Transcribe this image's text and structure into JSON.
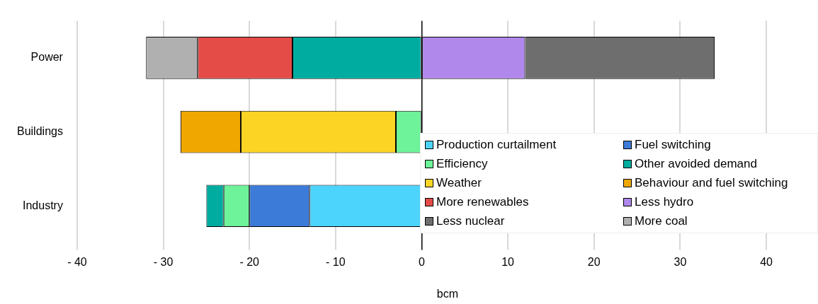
{
  "chart_data": {
    "type": "bar",
    "orientation": "horizontal",
    "stacked": true,
    "xlabel": "bcm",
    "categories": [
      "Power",
      "Buildings",
      "Industry"
    ],
    "series": [
      {
        "name": "Production curtailment",
        "color": "#4dd4fc",
        "values": [
          null,
          null,
          -13
        ]
      },
      {
        "name": "Fuel switching",
        "color": "#3d7bd9",
        "values": [
          null,
          null,
          -7
        ]
      },
      {
        "name": "Efficiency",
        "color": "#6ef29a",
        "values": [
          null,
          -3,
          -3
        ]
      },
      {
        "name": "Other avoided demand",
        "color": "#00aca0",
        "values": [
          -15,
          null,
          -2
        ]
      },
      {
        "name": "Weather",
        "color": "#fcd424",
        "values": [
          null,
          -18,
          null
        ]
      },
      {
        "name": "Behaviour and fuel switching",
        "color": "#f0a800",
        "values": [
          null,
          -7,
          null
        ]
      },
      {
        "name": "More renewables",
        "color": "#e44c48",
        "values": [
          -11,
          null,
          null
        ]
      },
      {
        "name": "Less hydro",
        "color": "#b088ec",
        "values": [
          12,
          null,
          null
        ]
      },
      {
        "name": "Less nuclear",
        "color": "#6e6e6e",
        "values": [
          22,
          null,
          null
        ]
      },
      {
        "name": "More coal",
        "color": "#b0b0b0",
        "values": [
          -6,
          null,
          null
        ]
      }
    ],
    "xlim": [
      -40,
      46
    ],
    "xticks": [
      {
        "value": -40,
        "label": "- 40"
      },
      {
        "value": -30,
        "label": "- 30"
      },
      {
        "value": -20,
        "label": "- 20"
      },
      {
        "value": -10,
        "label": "- 10"
      },
      0,
      10,
      20,
      30,
      40
    ],
    "grid": "x",
    "legend": "bottom right"
  }
}
